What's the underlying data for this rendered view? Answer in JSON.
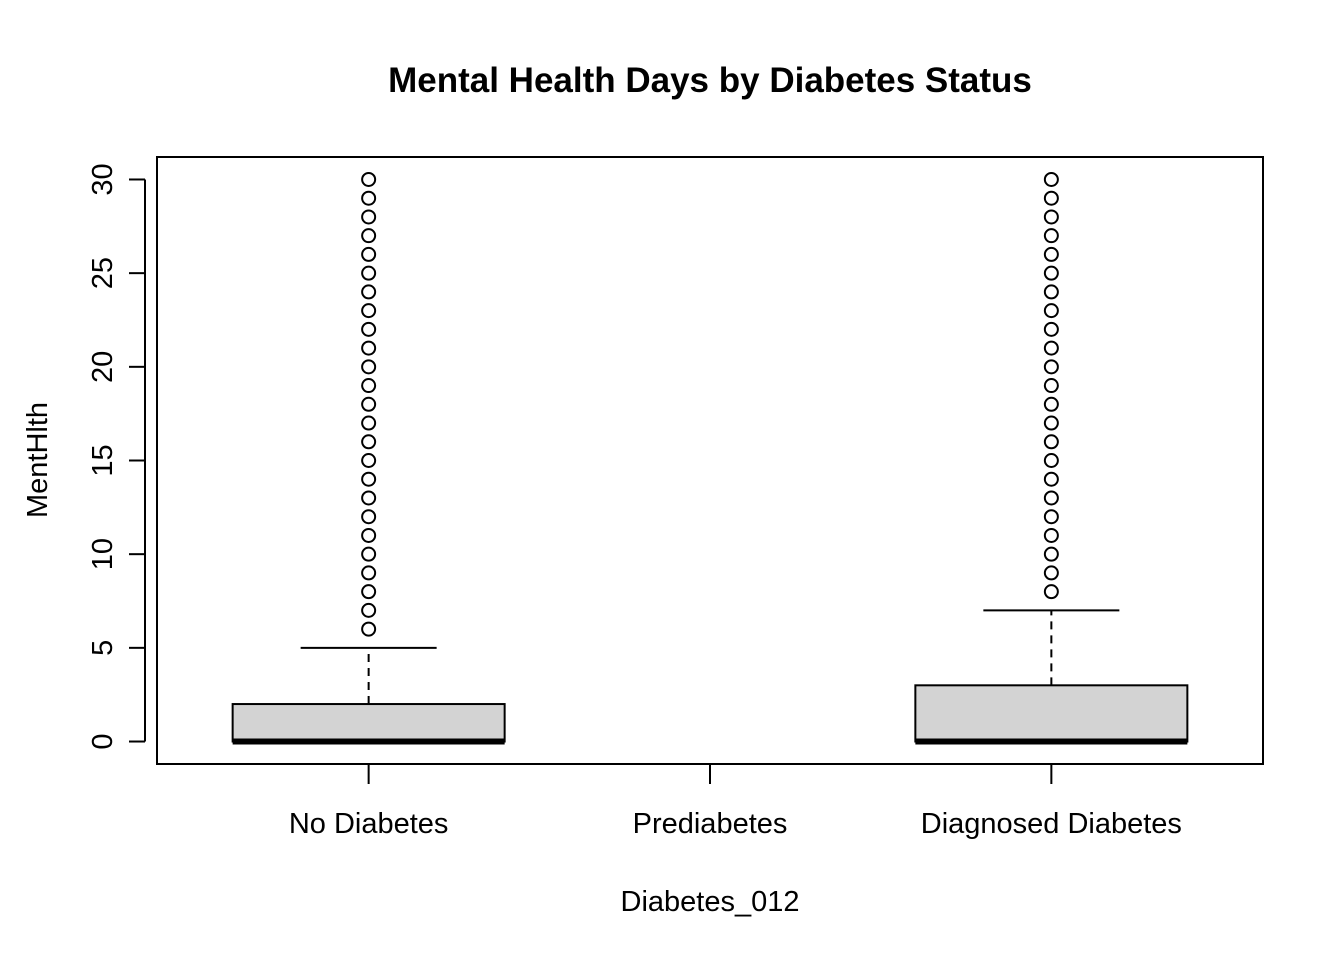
{
  "chart_data": {
    "type": "boxplot",
    "title": "Mental Health Days by Diabetes Status",
    "xlabel": "Diabetes_012",
    "ylabel": "MentHlth",
    "categories": [
      "No Diabetes",
      "Prediabetes",
      "Diagnosed Diabetes"
    ],
    "ylim": [
      -1.2,
      31.2
    ],
    "yticks": [
      0,
      5,
      10,
      15,
      20,
      25,
      30
    ],
    "grid": false,
    "box_fill": "#d3d3d3",
    "boxes": [
      {
        "category": "No Diabetes",
        "min": 0,
        "q1": 0,
        "median": 0,
        "q3": 2,
        "max": 5,
        "outliers": [
          6,
          7,
          8,
          9,
          10,
          11,
          12,
          13,
          14,
          15,
          16,
          17,
          18,
          19,
          20,
          21,
          22,
          23,
          24,
          25,
          26,
          27,
          28,
          29,
          30
        ]
      },
      {
        "category": "Prediabetes",
        "min": null,
        "q1": null,
        "median": null,
        "q3": null,
        "max": null,
        "outliers": []
      },
      {
        "category": "Diagnosed Diabetes",
        "min": 0,
        "q1": 0,
        "median": 0,
        "q3": 3,
        "max": 7,
        "outliers": [
          8,
          9,
          10,
          11,
          12,
          13,
          14,
          15,
          16,
          17,
          18,
          19,
          20,
          21,
          22,
          23,
          24,
          25,
          26,
          27,
          28,
          29,
          30
        ]
      }
    ]
  }
}
